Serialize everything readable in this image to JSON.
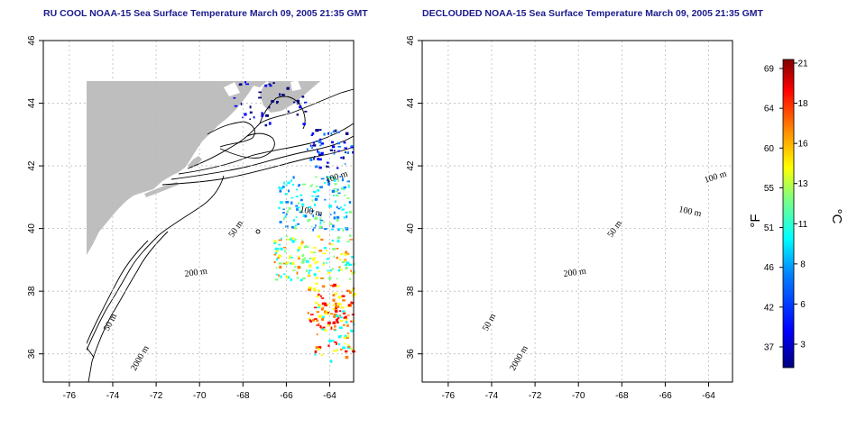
{
  "titles": {
    "left": "RU COOL NOAA-15 Sea Surface Temperature March 09, 2005 21:35 GMT",
    "right": "DECLOUDED NOAA-15 Sea Surface Temperature March 09, 2005 21:35 GMT"
  },
  "map": {
    "lon_ticks": [
      "-76",
      "-74",
      "-72",
      "-70",
      "-68",
      "-66",
      "-64"
    ],
    "lat_ticks": [
      "36",
      "38",
      "40",
      "42",
      "44",
      "46"
    ],
    "xlim": [
      -77.2,
      -62.9
    ],
    "ylim": [
      35.1,
      46.0
    ],
    "contour_labels": {
      "c100a": "100 m",
      "c100b": "100 m",
      "c50a": "50 m",
      "c200": "200 m",
      "c50b": "50 m",
      "c2000": "2000 m"
    },
    "land_color": "#bebebe",
    "grid": true
  },
  "colorbar": {
    "fahrenheit_ticks": [
      "69",
      "64",
      "60",
      "55",
      "51",
      "46",
      "42",
      "37"
    ],
    "celsius_ticks": [
      "21",
      "18",
      "16",
      "13",
      "11",
      "8",
      "6",
      "3"
    ],
    "f_unit": "°F",
    "c_unit": "°C",
    "colors": [
      "#00007f",
      "#0000ff",
      "#007fff",
      "#00ffff",
      "#7fff7f",
      "#ffff00",
      "#ff7f00",
      "#ff0000",
      "#7f0000"
    ]
  }
}
